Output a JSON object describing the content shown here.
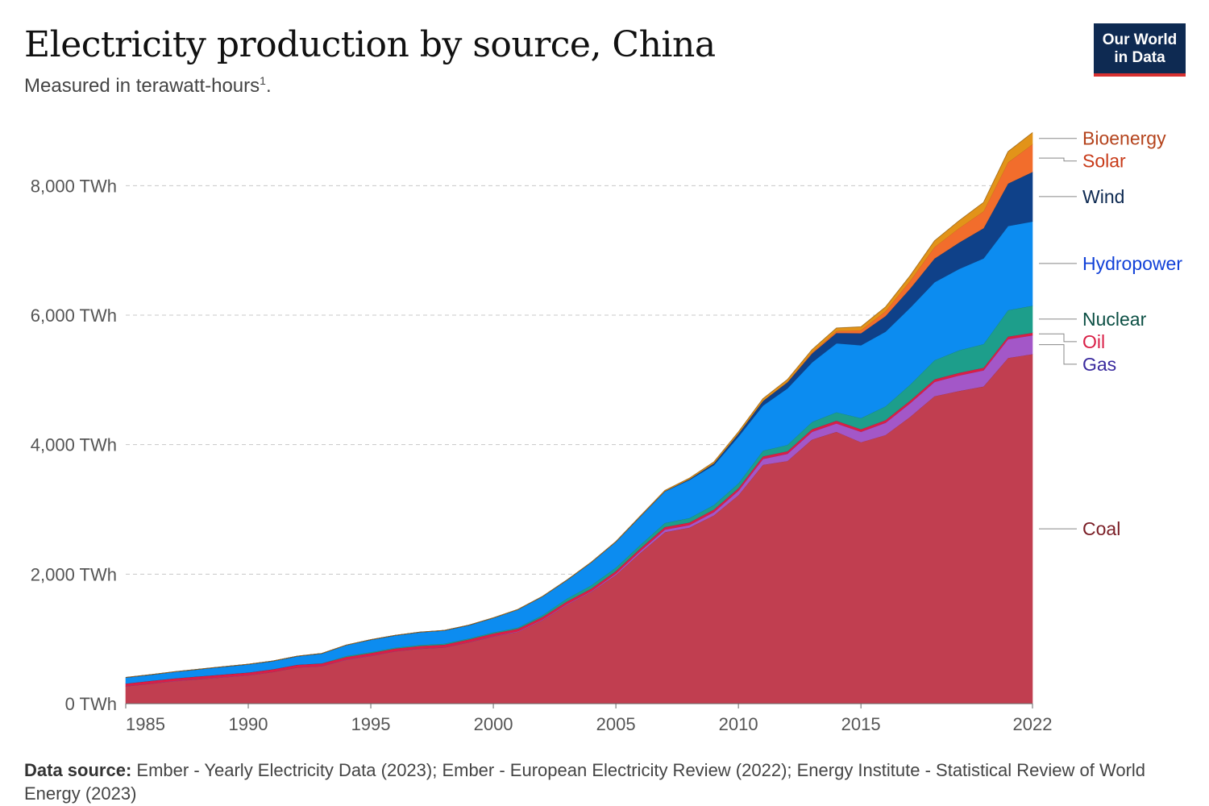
{
  "title": "Electricity production by source, China",
  "subtitle": "Measured in terawatt-hours",
  "subtitle_footnote": "1",
  "subtitle_end": ".",
  "logo": {
    "line1": "Our World",
    "line2": "in Data",
    "bg_color": "#0e2a52",
    "accent_color": "#d73030"
  },
  "source": {
    "label": "Data source:",
    "text": "Ember - Yearly Electricity Data (2023); Ember - European Electricity Review (2022); Energy Institute - Statistical Review of World Energy (2023)"
  },
  "chart_data": {
    "type": "area",
    "stacked": true,
    "grid": true,
    "legend_placement": "right (inline labels)",
    "x": [
      1985,
      1986,
      1987,
      1988,
      1989,
      1990,
      1991,
      1992,
      1993,
      1994,
      1995,
      1996,
      1997,
      1998,
      1999,
      2000,
      2001,
      2002,
      2003,
      2004,
      2005,
      2006,
      2007,
      2008,
      2009,
      2010,
      2011,
      2012,
      2013,
      2014,
      2015,
      2016,
      2017,
      2018,
      2019,
      2020,
      2021,
      2022
    ],
    "ylim": [
      0,
      9000
    ],
    "y_ticks": [
      0,
      2000,
      4000,
      6000,
      8000
    ],
    "y_tick_labels": [
      "0 TWh",
      "2,000 TWh",
      "4,000 TWh",
      "6,000 TWh",
      "8,000 TWh"
    ],
    "x_tick_labels": [
      "1985",
      "1990",
      "1995",
      "2000",
      "2005",
      "2010",
      "2015",
      "2022"
    ],
    "x_tick_values": [
      1985,
      1990,
      1995,
      2000,
      2005,
      2010,
      2015,
      2022
    ],
    "series": [
      {
        "name": "Coal",
        "color": "#c13e50",
        "label_color": "#7a1d25",
        "values": [
          270,
          310,
          350,
          380,
          410,
          440,
          490,
          560,
          580,
          680,
          740,
          810,
          850,
          870,
          950,
          1040,
          1110,
          1290,
          1530,
          1730,
          1990,
          2330,
          2650,
          2720,
          2910,
          3220,
          3690,
          3750,
          4080,
          4200,
          4040,
          4150,
          4430,
          4750,
          4830,
          4900,
          5340,
          5400
        ]
      },
      {
        "name": "Gas",
        "color": "#a357c8",
        "label_color": "#3a2a9e",
        "values": [
          3,
          3,
          3,
          3,
          3,
          3,
          3,
          3,
          3,
          3,
          3,
          3,
          3,
          3,
          3,
          5,
          8,
          10,
          10,
          10,
          20,
          30,
          40,
          40,
          50,
          70,
          90,
          110,
          120,
          130,
          160,
          190,
          210,
          220,
          240,
          250,
          290,
          290
        ]
      },
      {
        "name": "Oil",
        "color": "#d91e46",
        "label_color": "#d91e46",
        "values": [
          40,
          40,
          40,
          40,
          40,
          40,
          40,
          40,
          40,
          40,
          40,
          40,
          40,
          40,
          40,
          40,
          40,
          40,
          40,
          40,
          40,
          40,
          40,
          40,
          40,
          40,
          40,
          40,
          40,
          40,
          40,
          40,
          40,
          40,
          40,
          40,
          40,
          40
        ]
      },
      {
        "name": "Nuclear",
        "color": "#1d9e8b",
        "label_color": "#0b4f44",
        "values": [
          0,
          0,
          0,
          0,
          0,
          0,
          0,
          0,
          2,
          15,
          15,
          15,
          15,
          15,
          15,
          17,
          18,
          25,
          43,
          50,
          53,
          55,
          62,
          68,
          70,
          74,
          87,
          98,
          112,
          133,
          171,
          213,
          248,
          295,
          348,
          366,
          408,
          418
        ]
      },
      {
        "name": "Hydropower",
        "color": "#0c8cf0",
        "label_color": "#1141d8",
        "values": [
          92,
          94,
          100,
          110,
          118,
          126,
          125,
          130,
          150,
          167,
          190,
          188,
          196,
          204,
          204,
          222,
          277,
          288,
          284,
          354,
          397,
          436,
          486,
          587,
          616,
          722,
          698,
          872,
          920,
          1064,
          1126,
          1153,
          1187,
          1205,
          1257,
          1322,
          1300,
          1300
        ]
      },
      {
        "name": "Wind",
        "color": "#0f4189",
        "label_color": "#0e2a52",
        "values": [
          0,
          0,
          0,
          0,
          0,
          0,
          0,
          0,
          0,
          0,
          0,
          0,
          0,
          0,
          0,
          1,
          1,
          1,
          1,
          1,
          2,
          4,
          6,
          13,
          28,
          45,
          70,
          96,
          138,
          160,
          186,
          241,
          295,
          366,
          406,
          467,
          656,
          765
        ]
      },
      {
        "name": "Solar",
        "color": "#f26d2c",
        "label_color": "#c83a18",
        "values": [
          0,
          0,
          0,
          0,
          0,
          0,
          0,
          0,
          0,
          0,
          0,
          0,
          0,
          0,
          0,
          0,
          0,
          0,
          0,
          0,
          0,
          0,
          0,
          0,
          0,
          1,
          3,
          6,
          15,
          29,
          45,
          75,
          118,
          177,
          224,
          261,
          327,
          427
        ]
      },
      {
        "name": "Bioenergy",
        "color": "#e29319",
        "label_color": "#b4431c",
        "values": [
          0,
          0,
          0,
          0,
          0,
          0,
          0,
          0,
          0,
          0,
          0,
          0,
          0,
          0,
          0,
          2,
          2,
          2,
          2,
          2,
          2,
          5,
          10,
          15,
          20,
          25,
          32,
          35,
          42,
          46,
          53,
          65,
          80,
          96,
          113,
          135,
          165,
          180
        ]
      }
    ]
  }
}
